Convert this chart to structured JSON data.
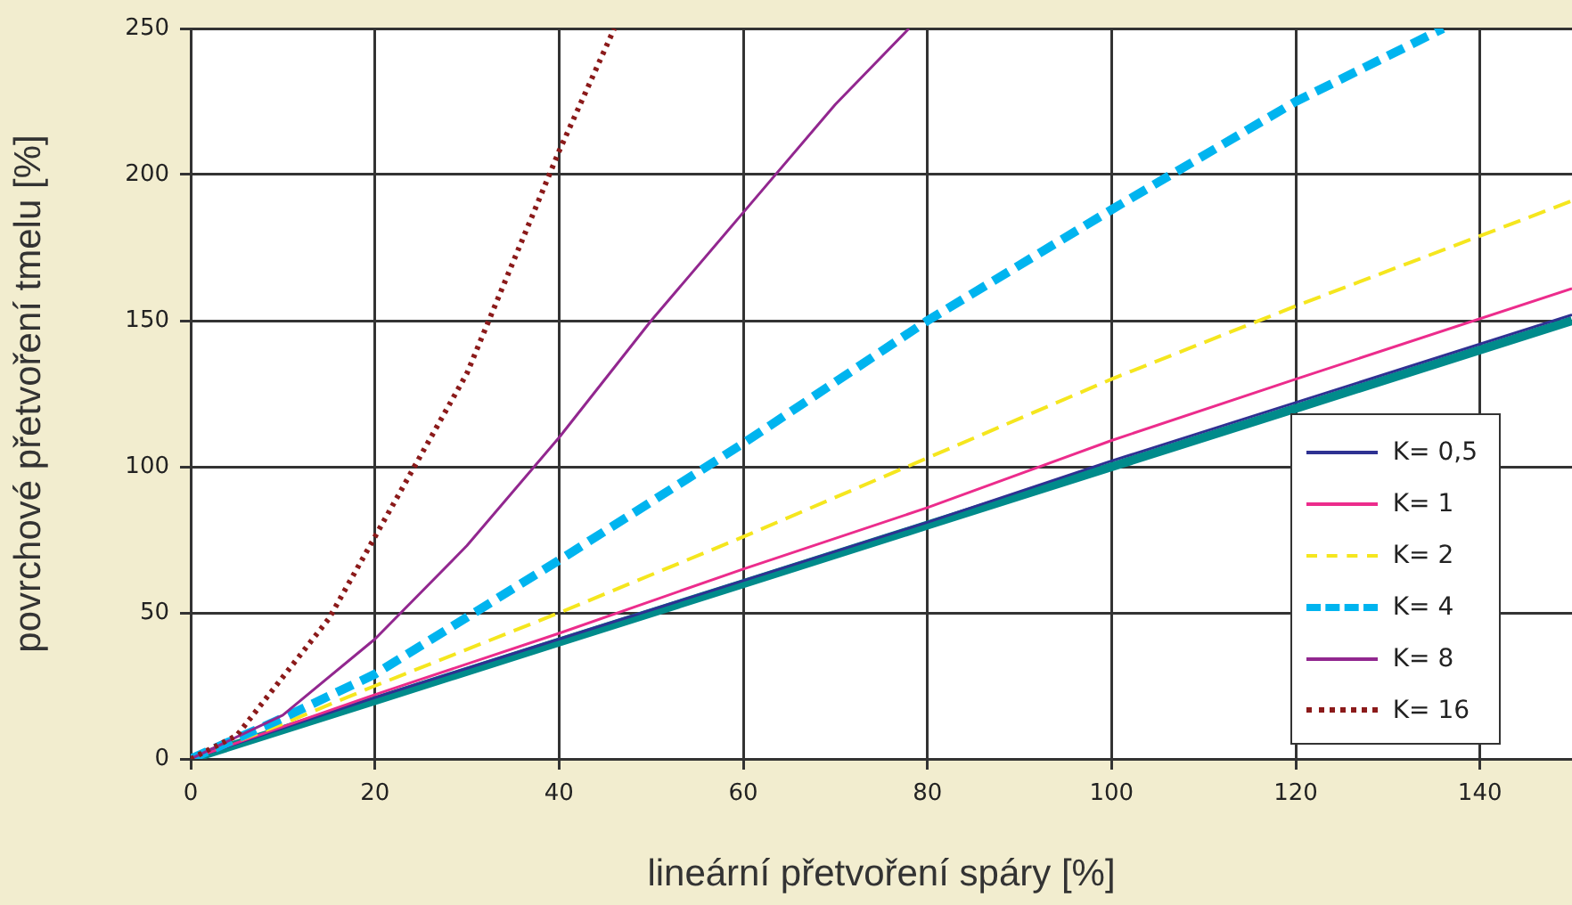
{
  "chart_data": {
    "type": "line",
    "xlabel": "lineární přetvoření spáry [%]",
    "ylabel": "povrchové přetvoření tmelu [%]",
    "xlim": [
      0,
      150
    ],
    "xticks": [
      0,
      20,
      40,
      60,
      80,
      100,
      120,
      140
    ],
    "ylim": [
      0,
      250
    ],
    "yticks": [
      0,
      50,
      100,
      150,
      200,
      250
    ],
    "grid": true,
    "legend": "bottom right",
    "marker": "none",
    "series": [
      {
        "color": "#008b8b",
        "line_style": "solid",
        "x": [
          0,
          20,
          40,
          60,
          80,
          100,
          120,
          150
        ],
        "values": [
          0,
          20,
          40,
          60,
          80,
          100,
          120,
          150
        ]
      },
      {
        "name": "K= 0,5",
        "color": "#2e3192",
        "line_style": "solid",
        "x": [
          0,
          20,
          40,
          60,
          80,
          100,
          120,
          150
        ],
        "values": [
          0,
          21,
          41,
          61,
          81,
          102,
          122,
          152
        ]
      },
      {
        "name": "K= 1",
        "color": "#ec2c8c",
        "line_style": "solid",
        "x": [
          0,
          10,
          20,
          40,
          60,
          80,
          100,
          120,
          150
        ],
        "values": [
          0,
          11,
          22,
          43,
          65,
          86,
          109,
          130,
          161
        ]
      },
      {
        "name": "K= 2",
        "color": "#f5e61e",
        "line_style": "dashed",
        "x": [
          0,
          10,
          20,
          40,
          60,
          80,
          100,
          120,
          150
        ],
        "values": [
          0,
          12,
          25,
          50,
          76,
          103,
          130,
          155,
          191
        ]
      },
      {
        "name": "K= 4",
        "color": "#00b4ef",
        "line_style": "dashed",
        "x": [
          0,
          10,
          20,
          40,
          60,
          80,
          100,
          120,
          136
        ],
        "values": [
          0,
          14,
          29,
          68,
          108,
          150,
          188,
          225,
          250
        ]
      },
      {
        "name": "K= 8",
        "color": "#92278f",
        "line_style": "solid",
        "x": [
          0,
          10,
          20,
          30,
          40,
          50,
          60,
          70,
          78
        ],
        "values": [
          0,
          15,
          41,
          73,
          110,
          150,
          187,
          224,
          250
        ]
      },
      {
        "name": "K= 16",
        "color": "#8b1a1a",
        "line_style": "dotted",
        "x": [
          0,
          5,
          10,
          15,
          20,
          30,
          35,
          40,
          46
        ],
        "values": [
          0,
          8,
          28,
          48,
          76,
          132,
          170,
          208,
          250
        ]
      }
    ]
  }
}
